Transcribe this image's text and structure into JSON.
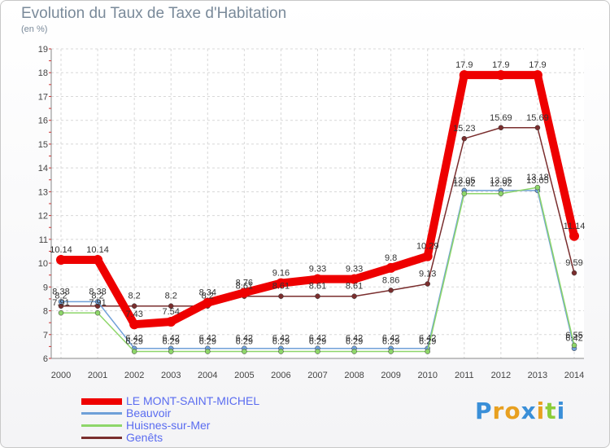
{
  "header": {
    "title": "Evolution du Taux de Taxe d'Habitation",
    "unit": "(en %)"
  },
  "chart_data": {
    "type": "line",
    "title": "Evolution du Taux de Taxe d'Habitation",
    "ylabel": "(en %)",
    "xlabel": "",
    "ylim": [
      6,
      19
    ],
    "yticks": [
      "6",
      "7",
      "8",
      "9",
      "10",
      "11",
      "12",
      "13",
      "14",
      "15",
      "16",
      "17",
      "18",
      "19"
    ],
    "categories": [
      "2000",
      "2001",
      "2002",
      "2003",
      "2004",
      "2005",
      "2006",
      "2007",
      "2008",
      "2009",
      "2010",
      "2011",
      "2012",
      "2013",
      "2014"
    ],
    "series": [
      {
        "name": "LE MONT-SAINT-MICHEL",
        "color": "#ee0000",
        "values": [
          10.14,
          10.14,
          7.43,
          7.54,
          8.34,
          8.76,
          9.16,
          9.33,
          9.33,
          9.8,
          10.29,
          17.9,
          17.9,
          17.9,
          11.14
        ],
        "labels": [
          "10.14",
          "10.14",
          "7.43",
          "7.54",
          "8.34",
          "8.76",
          "9.16",
          "9.33",
          "9.33",
          "9.8",
          "10.29",
          "17.9",
          "17.9",
          "17.9",
          "11.14"
        ]
      },
      {
        "name": "Beauvoir",
        "color": "#6fa0d8",
        "values": [
          8.38,
          8.38,
          6.42,
          6.42,
          6.42,
          6.42,
          6.42,
          6.42,
          6.42,
          6.42,
          6.42,
          13.05,
          13.05,
          13.05,
          6.42
        ],
        "labels": [
          "8.38",
          "8.38",
          "6.42",
          "6.42",
          "6.42",
          "6.42",
          "6.42",
          "6.42",
          "6.42",
          "6.42",
          "6.42",
          "13.05",
          "13.05",
          "13.05",
          "6.42"
        ]
      },
      {
        "name": "Huisnes-sur-Mer",
        "color": "#8ed66a",
        "values": [
          7.91,
          7.91,
          6.29,
          6.29,
          6.29,
          6.29,
          6.29,
          6.29,
          6.29,
          6.29,
          6.29,
          12.92,
          12.92,
          13.18,
          6.55
        ],
        "labels": [
          "7.91",
          "7.91",
          "6.29",
          "6.29",
          "6.29",
          "6.29",
          "6.29",
          "6.29",
          "6.29",
          "6.29",
          "6.29",
          "12.92",
          "12.92",
          "13.18",
          "6.55"
        ]
      },
      {
        "name": "Genêts",
        "color": "#7a2e2e",
        "values": [
          8.2,
          8.2,
          8.2,
          8.2,
          8.2,
          8.61,
          8.61,
          8.61,
          8.61,
          8.86,
          9.13,
          15.23,
          15.69,
          15.69,
          9.59
        ],
        "labels": [
          "8.2",
          "8.2",
          "8.2",
          "8.2",
          "8.2",
          "8.61",
          "8.61",
          "8.61",
          "8.61",
          "8.86",
          "9.13",
          "15.23",
          "15.69",
          "15.69",
          "9.59"
        ]
      }
    ],
    "legend_position": "bottom-left",
    "grid": true
  },
  "branding": {
    "logo_letters": [
      "P",
      "r",
      "o",
      "x",
      "i",
      "t",
      "i"
    ],
    "logo_colors": [
      "#3a8fd8",
      "#e8a020",
      "#e8a020",
      "#3a8fd8",
      "#e8a020",
      "#8ccd3a",
      "#3a8fd8"
    ]
  }
}
